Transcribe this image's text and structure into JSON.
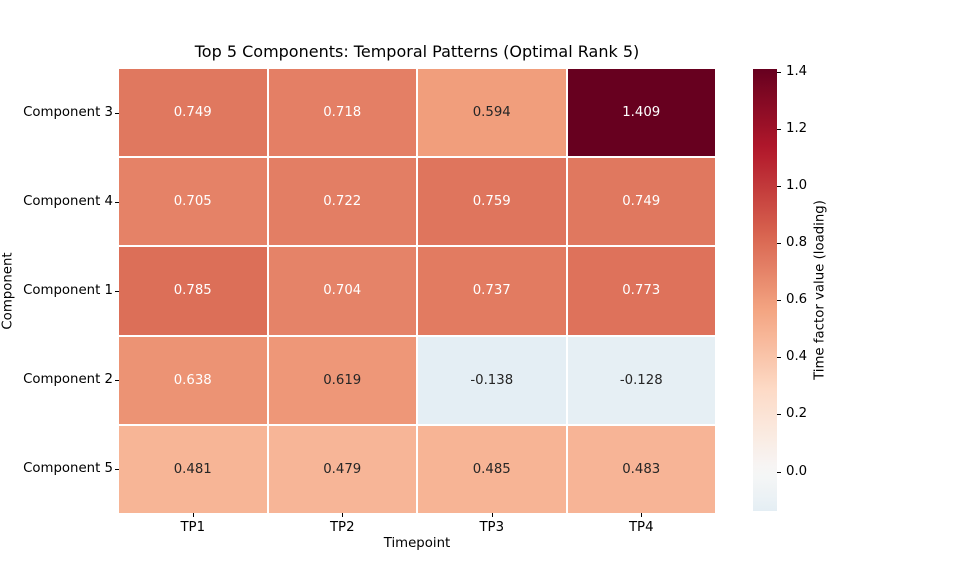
{
  "chart_data": {
    "type": "heatmap",
    "title": "Top 5 Components: Temporal Patterns (Optimal Rank 5)",
    "xlabel": "Timepoint",
    "ylabel": "Component",
    "columns": [
      "TP1",
      "TP2",
      "TP3",
      "TP4"
    ],
    "rows": [
      "Component 3",
      "Component 4",
      "Component 1",
      "Component 2",
      "Component 5"
    ],
    "values": [
      [
        0.749,
        0.718,
        0.594,
        1.409
      ],
      [
        0.705,
        0.722,
        0.759,
        0.749
      ],
      [
        0.785,
        0.704,
        0.737,
        0.773
      ],
      [
        0.638,
        0.619,
        -0.138,
        -0.128
      ],
      [
        0.481,
        0.479,
        0.485,
        0.483
      ]
    ],
    "value_decimals": 3,
    "colorbar": {
      "label": "Time factor value (loading)",
      "ticks": [
        0.0,
        0.2,
        0.4,
        0.6,
        0.8,
        1.0,
        1.2,
        1.4
      ],
      "tick_decimals": 1,
      "vmin": -0.138,
      "vmax": 1.409,
      "center": 0
    },
    "colormap": {
      "name": "RdBu_r",
      "anchors": [
        "#053061",
        "#2166ac",
        "#4393c3",
        "#92c5de",
        "#d1e5f0",
        "#f7f7f7",
        "#fddbc7",
        "#f4a582",
        "#d6604d",
        "#b2182b",
        "#67001f"
      ]
    },
    "colors": {
      "annotation_light": "#ffffff",
      "annotation_dark": "#262626",
      "axis_text": "#000000",
      "gridline": "#ffffff",
      "background": "#ffffff"
    },
    "legend": null,
    "grid": false
  }
}
